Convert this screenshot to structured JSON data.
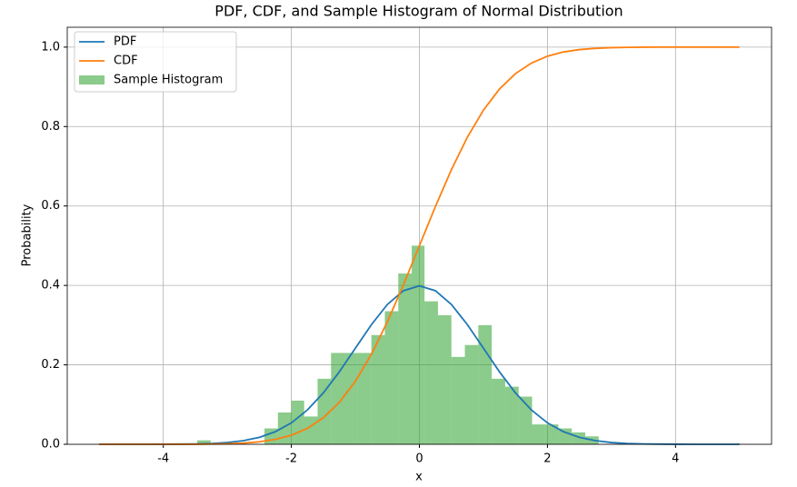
{
  "chart_data": {
    "type": "line",
    "title": "PDF, CDF, and Sample Histogram of Normal Distribution",
    "xlabel": "x",
    "ylabel": "Probability",
    "x": [
      -5,
      -4.75,
      -4.5,
      -4.25,
      -4,
      -3.75,
      -3.5,
      -3.25,
      -3,
      -2.75,
      -2.5,
      -2.25,
      -2,
      -1.75,
      -1.5,
      -1.25,
      -1,
      -0.75,
      -0.5,
      -0.25,
      0,
      0.25,
      0.5,
      0.75,
      1,
      1.25,
      1.5,
      1.75,
      2,
      2.25,
      2.5,
      2.75,
      3,
      3.25,
      3.5,
      3.75,
      4,
      4.25,
      4.5,
      4.75,
      5
    ],
    "series": [
      {
        "name": "PDF",
        "color": "#1f77b4",
        "values": [
          0,
          0,
          0,
          0,
          0.0001,
          0.0004,
          0.0009,
          0.002,
          0.0044,
          0.0091,
          0.0175,
          0.0317,
          0.054,
          0.0863,
          0.1295,
          0.1826,
          0.242,
          0.3011,
          0.3521,
          0.3867,
          0.3989,
          0.3867,
          0.3521,
          0.3011,
          0.242,
          0.1826,
          0.1295,
          0.0863,
          0.054,
          0.0317,
          0.0175,
          0.0091,
          0.0044,
          0.002,
          0.0009,
          0.0004,
          0.0001,
          0,
          0,
          0,
          0
        ]
      },
      {
        "name": "CDF",
        "color": "#ff7f0e",
        "values": [
          0,
          0,
          0,
          0,
          0,
          0.0001,
          0.0002,
          0.0006,
          0.0013,
          0.003,
          0.0062,
          0.0122,
          0.0228,
          0.0401,
          0.0668,
          0.1056,
          0.1587,
          0.2266,
          0.3085,
          0.4013,
          0.5,
          0.5987,
          0.6915,
          0.7734,
          0.8413,
          0.8944,
          0.9332,
          0.9599,
          0.9772,
          0.9878,
          0.9938,
          0.997,
          0.9987,
          0.9994,
          0.9998,
          0.9999,
          1,
          1,
          1,
          1,
          1
        ]
      }
    ],
    "histogram": {
      "name": "Sample Histogram",
      "color": "#2ca02c",
      "opacity": 0.55,
      "bins": [
        -3.47,
        -3.26,
        -3.05,
        -2.84,
        -2.63,
        -2.42,
        -2.21,
        -2.0,
        -1.8,
        -1.59,
        -1.38,
        -1.17,
        -0.96,
        -0.75,
        -0.54,
        -0.33,
        -0.12,
        0.08,
        0.29,
        0.5,
        0.71,
        0.92,
        1.13,
        1.34,
        1.55,
        1.76,
        1.96,
        2.17,
        2.38,
        2.59,
        2.8
      ],
      "values": [
        0.01,
        0,
        0,
        0,
        0,
        0.04,
        0.08,
        0.11,
        0.07,
        0.165,
        0.23,
        0.23,
        0.23,
        0.275,
        0.335,
        0.43,
        0.5,
        0.36,
        0.325,
        0.22,
        0.25,
        0.3,
        0.165,
        0.145,
        0.12,
        0.05,
        0.05,
        0.04,
        0.03,
        0.02
      ]
    },
    "xlim": [
      -5.5,
      5.5
    ],
    "ylim": [
      0,
      1.05
    ],
    "xticks": [
      -4,
      -2,
      0,
      2,
      4
    ],
    "yticks": [
      {
        "value": 0,
        "label": "0.0"
      },
      0.2,
      0.4,
      0.6,
      0.8,
      {
        "value": 1,
        "label": "1.0"
      }
    ],
    "grid": true,
    "legend": "upper left"
  }
}
